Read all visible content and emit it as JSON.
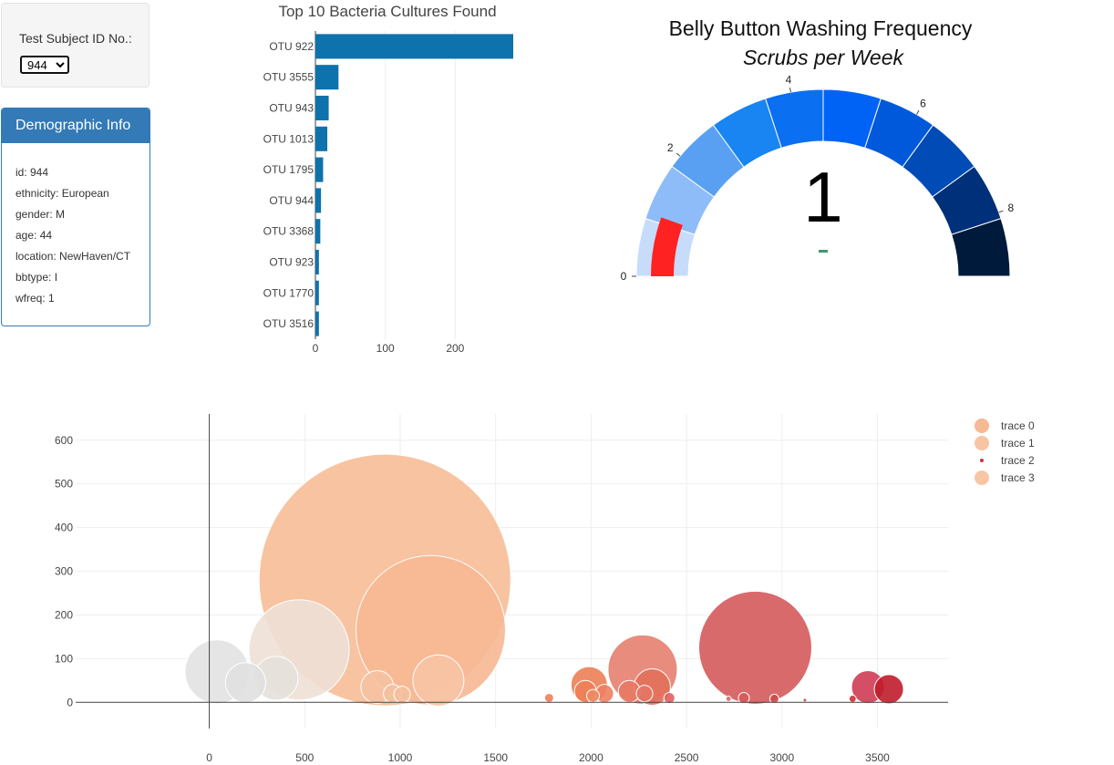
{
  "selector": {
    "label": "Test Subject ID No.:",
    "selected": "944"
  },
  "demographic": {
    "title": "Demographic Info",
    "rows": [
      "id: 944",
      "ethnicity: European",
      "gender: M",
      "age: 44",
      "location: NewHaven/CT",
      "bbtype: I",
      "wfreq: 1"
    ]
  },
  "colors": {
    "panel_primary": "#337ab7",
    "bar": "#0e72ad",
    "needle": "#ff2222",
    "gauge_value_dash": "#3d9970"
  },
  "chart_data": [
    {
      "type": "bar",
      "orientation": "horizontal",
      "title": "Top 10 Bacteria Cultures Found",
      "categories": [
        "OTU 922",
        "OTU 3555",
        "OTU 943",
        "OTU 1013",
        "OTU 1795",
        "OTU 944",
        "OTU 3368",
        "OTU 923",
        "OTU 1770",
        "OTU 3516"
      ],
      "values": [
        283,
        33,
        19,
        17,
        11,
        8,
        7,
        5,
        5,
        5
      ],
      "xlim": [
        0,
        283
      ],
      "xticks": [
        0,
        100,
        200
      ],
      "grid": true
    },
    {
      "type": "gauge",
      "title": "Belly Button Washing Frequency",
      "subtitle": "Scrubs per Week",
      "value": 1,
      "value_label": "1",
      "range": [
        0,
        9
      ],
      "ticks": [
        0,
        2,
        4,
        6,
        8
      ],
      "step_colors": [
        "#c6dcfa",
        "#8ebcf8",
        "#5aa0f2",
        "#1885f2",
        "#0a6ff0",
        "#0063f5",
        "#0059db",
        "#004bb5",
        "#00307a",
        "#001a3b"
      ]
    },
    {
      "type": "scatter",
      "mode": "bubble",
      "xlim": [
        -700,
        3870
      ],
      "ylim": [
        -60,
        660
      ],
      "xticks": [
        0,
        500,
        1000,
        1500,
        2000,
        2500,
        3000,
        3500
      ],
      "yticks": [
        0,
        100,
        200,
        300,
        400,
        500,
        600
      ],
      "grid": true,
      "legend_position": "top-right",
      "legend": [
        {
          "label": "trace 0",
          "color": "#f7b894",
          "size": "large"
        },
        {
          "label": "trace 1",
          "color": "#f7c4a4",
          "size": "large"
        },
        {
          "label": "trace 2",
          "color": "#cf3040",
          "size": "small"
        },
        {
          "label": "trace 3",
          "color": "#f7c6a4",
          "size": "large"
        }
      ],
      "bubbles": [
        {
          "x": 40,
          "y": 70,
          "r": 35,
          "color": "#e2e2e2"
        },
        {
          "x": 190,
          "y": 45,
          "r": 22,
          "color": "#e0e0e0"
        },
        {
          "x": 470,
          "y": 120,
          "r": 55,
          "color": "#ede0d6"
        },
        {
          "x": 350,
          "y": 55,
          "r": 24,
          "color": "#e6e0dc"
        },
        {
          "x": 1160,
          "y": 165,
          "r": 82,
          "color": "#f7b894"
        },
        {
          "x": 920,
          "y": 280,
          "r": 138,
          "color": "#f7bc96"
        },
        {
          "x": 1200,
          "y": 50,
          "r": 28,
          "color": "#f7c4a4"
        },
        {
          "x": 880,
          "y": 35,
          "r": 18,
          "color": "#f5c2a2"
        },
        {
          "x": 960,
          "y": 20,
          "r": 10,
          "color": "#f4c0a0"
        },
        {
          "x": 1010,
          "y": 18,
          "r": 9,
          "color": "#f4c0a0"
        },
        {
          "x": 1780,
          "y": 10,
          "r": 5,
          "color": "#ee8155"
        },
        {
          "x": 1990,
          "y": 40,
          "r": 20,
          "color": "#ec8058"
        },
        {
          "x": 1970,
          "y": 25,
          "r": 12,
          "color": "#ee7e55"
        },
        {
          "x": 2070,
          "y": 20,
          "r": 10,
          "color": "#ee8060"
        },
        {
          "x": 2010,
          "y": 15,
          "r": 7,
          "color": "#ef8860"
        },
        {
          "x": 2270,
          "y": 75,
          "r": 38,
          "color": "#e68070"
        },
        {
          "x": 2320,
          "y": 35,
          "r": 20,
          "color": "#e2705a"
        },
        {
          "x": 2200,
          "y": 25,
          "r": 12,
          "color": "#e97864"
        },
        {
          "x": 2280,
          "y": 20,
          "r": 9,
          "color": "#e57465"
        },
        {
          "x": 2410,
          "y": 10,
          "r": 6,
          "color": "#df6060"
        },
        {
          "x": 2860,
          "y": 125,
          "r": 62,
          "color": "#d55a5c"
        },
        {
          "x": 2800,
          "y": 10,
          "r": 6,
          "color": "#d85a5a"
        },
        {
          "x": 2960,
          "y": 8,
          "r": 5,
          "color": "#d04a4a"
        },
        {
          "x": 3450,
          "y": 35,
          "r": 18,
          "color": "#cf3c55"
        },
        {
          "x": 3560,
          "y": 30,
          "r": 16,
          "color": "#c01c2a"
        },
        {
          "x": 3370,
          "y": 8,
          "r": 4,
          "color": "#cc3333"
        },
        {
          "x": 2720,
          "y": 8,
          "r": 3,
          "color": "#d86a6a"
        },
        {
          "x": 3120,
          "y": 5,
          "r": 2,
          "color": "#cc4444"
        }
      ]
    }
  ]
}
